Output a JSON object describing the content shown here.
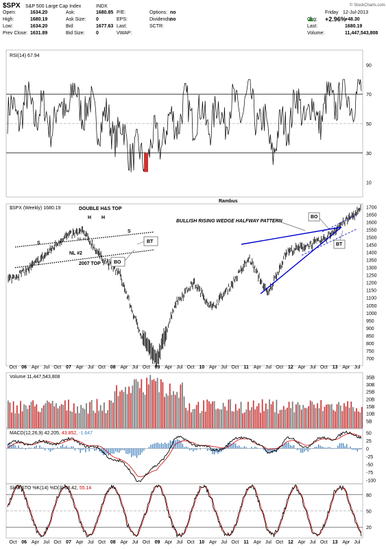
{
  "header": {
    "symbol": "$SPX",
    "name": "S&P 500 Large Cap Index",
    "exchange": "INDX",
    "watermark": "© StockCharts.com",
    "date_label": "Friday",
    "date_value": "12-Jul-2013",
    "pct_change": "+2.96%",
    "stats": [
      {
        "label": "Open:",
        "value": "1634.20"
      },
      {
        "label": "High:",
        "value": "1680.19"
      },
      {
        "label": "Low:",
        "value": "1634.20"
      },
      {
        "label": "Prev Close:",
        "value": "1631.89"
      },
      {
        "label": "Ask:",
        "value": "1680.85"
      },
      {
        "label": "Ask Size:",
        "value": "0"
      },
      {
        "label": "Bid:",
        "value": "1677.63"
      },
      {
        "label": "Bid Size:",
        "value": "0"
      },
      {
        "label": "P/E:",
        "value": ""
      },
      {
        "label": "EPS:",
        "value": ""
      },
      {
        "label": "Last:",
        "value": ""
      },
      {
        "label": "VWAP:",
        "value": ""
      },
      {
        "label": "Options:",
        "value": "no"
      },
      {
        "label": "Dividends:",
        "value": "no"
      },
      {
        "label": "SCTR:",
        "value": ""
      },
      {
        "label": "Chg:",
        "value": "+48.30"
      },
      {
        "label": "Last:",
        "value": "1680.19"
      },
      {
        "label": "Volume:",
        "value": "11,447,543,808"
      }
    ]
  },
  "colors": {
    "up": "#2a8a2a",
    "blue": "#0000cc",
    "red": "#cc0000",
    "vol_red": "#cc3333",
    "vol_gray": "#777777",
    "macd_hist": "#3b7dbd"
  },
  "chart_data": [
    {
      "type": "line",
      "panel": "rsi",
      "title": "RSI(14) 67.94",
      "ylim": [
        0,
        100
      ],
      "yticks": [
        10,
        30,
        50,
        70,
        90
      ],
      "reference_lines": [
        30,
        50,
        70
      ],
      "x": [
        "Oct 05",
        "Apr 06",
        "Oct 06",
        "Apr 07",
        "Oct 07",
        "Apr 08",
        "Oct 08",
        "Apr 09",
        "Oct 09",
        "Apr 10",
        "Oct 10",
        "Apr 11",
        "Oct 11",
        "Apr 12",
        "Oct 12",
        "Apr 13",
        "Jul 13"
      ],
      "values": [
        55,
        62,
        52,
        68,
        55,
        45,
        25,
        42,
        60,
        52,
        58,
        65,
        35,
        62,
        55,
        70,
        68
      ]
    },
    {
      "type": "line",
      "panel": "price",
      "title": "$SPX (Weekly) 1680.19",
      "header_label": "Rambus",
      "ylim": [
        650,
        1720
      ],
      "yticks": [
        700,
        750,
        800,
        850,
        900,
        950,
        1000,
        1050,
        1100,
        1150,
        1200,
        1250,
        1300,
        1350,
        1400,
        1450,
        1500,
        1550,
        1600,
        1650,
        1700
      ],
      "x_labels": [
        "Oct",
        "06",
        "Apr",
        "Jul",
        "Oct",
        "07",
        "Apr",
        "Jul",
        "Oct",
        "08",
        "Apr",
        "Jul",
        "Oct",
        "09",
        "Apr",
        "Jul",
        "Oct",
        "10",
        "Apr",
        "Jul",
        "Oct",
        "11",
        "Apr",
        "Jul",
        "Oct",
        "12",
        "Apr",
        "Jul",
        "Oct",
        "13",
        "Apr",
        "Jul"
      ],
      "x": [
        "Oct 05",
        "Apr 06",
        "Oct 06",
        "Apr 07",
        "Oct 07",
        "Apr 08",
        "Jul 08",
        "Oct 08",
        "Mar 09",
        "Oct 09",
        "Apr 10",
        "Jul 10",
        "Oct 10",
        "Apr 11",
        "Oct 11",
        "Apr 12",
        "Oct 12",
        "Jan 13",
        "Apr 13",
        "Jul 13"
      ],
      "values": [
        1220,
        1280,
        1380,
        1500,
        1540,
        1370,
        1260,
        900,
        680,
        1060,
        1200,
        1030,
        1180,
        1360,
        1120,
        1400,
        1440,
        1480,
        1590,
        1680
      ],
      "annotations": [
        "DOUBLE H&S TOP",
        "H",
        "H",
        "S",
        "S",
        "NL #1",
        "NL #2",
        "2007 TOP",
        "BT",
        "BO",
        "BULLISH RISING WEDGE HALFWAY PATTERN",
        "BO",
        "BT"
      ]
    },
    {
      "type": "bar",
      "panel": "volume",
      "title": "Volume 11,447,543,808",
      "yticks": [
        "35B",
        "30B",
        "25B",
        "20B",
        "15B",
        "10B",
        "5B"
      ],
      "ylim": [
        0,
        38
      ]
    },
    {
      "type": "line",
      "panel": "macd",
      "title": "MACD(12,26,9) 42.205, 43.852, -1.647",
      "title_parts": {
        "label": "MACD(12,26,9) 42.205,",
        "signal": "43.852,",
        "hist": "-1.647"
      },
      "ylim": [
        -112,
        62
      ],
      "yticks": [
        50,
        25,
        0,
        -25,
        -50,
        -75,
        -100
      ],
      "series": [
        {
          "values": [
            10,
            20,
            15,
            25,
            20,
            -10,
            -40,
            -100,
            -60,
            30,
            20,
            -10,
            20,
            40,
            -20,
            30,
            10,
            30,
            45,
            42
          ]
        },
        {
          "values": [
            5,
            18,
            17,
            22,
            22,
            0,
            -30,
            -85,
            -75,
            15,
            22,
            0,
            12,
            35,
            -10,
            22,
            15,
            25,
            40,
            44
          ]
        }
      ]
    },
    {
      "type": "line",
      "panel": "sto",
      "title": "Slow STO %K(14) %D(3) 68.42, 55.14",
      "title_parts": {
        "label": "Slow STO %K(14) %D(3) 68.42,",
        "d": "55.14"
      },
      "ylim": [
        0,
        100
      ],
      "yticks": [
        80,
        50,
        20
      ],
      "reference_lines": [
        20,
        50,
        80
      ]
    }
  ]
}
